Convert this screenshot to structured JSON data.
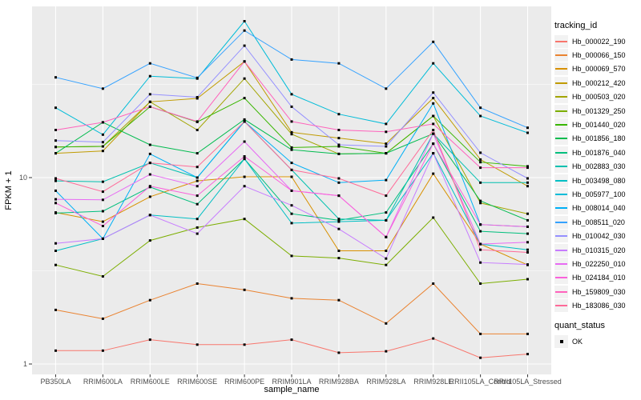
{
  "chart_data": {
    "type": "line",
    "title": "",
    "xlabel": "sample_name",
    "ylabel": "FPKM + 1",
    "y_scale": "log10",
    "ylim": [
      1,
      83
    ],
    "y_ticks": [
      1,
      10
    ],
    "y_tick_labels": [
      "1",
      "10"
    ],
    "y_minor_ticks": [
      3.1623,
      31.623
    ],
    "grid": true,
    "legend_position": "right",
    "categories": [
      "PB350LA",
      "RRIM600LA",
      "RRIM600LE",
      "RRIM600SE",
      "RRIM600PE",
      "RRIM901LA",
      "RRIM928BA",
      "RRIM928LA",
      "RRIM928LE",
      "RRII105LA_Control",
      "RRII105LA_Stressed"
    ],
    "series": [
      {
        "name": "Hb_000022_190",
        "color": "#F8766D",
        "values": [
          1.18,
          1.18,
          1.35,
          1.27,
          1.27,
          1.35,
          1.15,
          1.17,
          1.37,
          1.08,
          1.13
        ]
      },
      {
        "name": "Hb_000066_150",
        "color": "#EA8331",
        "values": [
          1.95,
          1.75,
          2.2,
          2.7,
          2.5,
          2.25,
          2.2,
          1.65,
          2.7,
          1.45,
          1.45
        ]
      },
      {
        "name": "Hb_000069_570",
        "color": "#D89000",
        "values": [
          6.5,
          5.8,
          7.9,
          9.6,
          10.1,
          10.1,
          4.05,
          4.05,
          10.5,
          4.4,
          3.4
        ]
      },
      {
        "name": "Hb_000212_420",
        "color": "#C09B00",
        "values": [
          13.5,
          13.9,
          25.5,
          26.6,
          42,
          17.5,
          16.3,
          15.2,
          26.7,
          12.5,
          9.0
        ]
      },
      {
        "name": "Hb_000503_020",
        "color": "#A3A500",
        "values": [
          14.6,
          14.7,
          25.5,
          18,
          34,
          17.1,
          13.4,
          13.5,
          21.4,
          7.3,
          6.4
        ]
      },
      {
        "name": "Hb_001329_250",
        "color": "#7CAE00",
        "values": [
          3.4,
          2.95,
          4.6,
          5.4,
          6.0,
          3.8,
          3.7,
          3.4,
          6.1,
          2.7,
          2.85
        ]
      },
      {
        "name": "Hb_001440_020",
        "color": "#39B600",
        "values": [
          14.6,
          14.7,
          24,
          19.9,
          26.7,
          14.5,
          14.7,
          13.5,
          21.4,
          12.1,
          11.5
        ]
      },
      {
        "name": "Hb_001856_180",
        "color": "#00BB4E",
        "values": [
          13.5,
          19.8,
          15,
          13.5,
          20.5,
          14.1,
          13.4,
          13.5,
          17.2,
          7.5,
          5.9
        ]
      },
      {
        "name": "Hb_001876_040",
        "color": "#00BF7D",
        "values": [
          6.45,
          6.6,
          8.9,
          7.2,
          12.6,
          6.4,
          5.9,
          6.5,
          15.2,
          5.15,
          5.0
        ]
      },
      {
        "name": "Hb_002883_030",
        "color": "#00C0AF",
        "values": [
          9.6,
          9.5,
          12,
          10,
          20,
          11,
          6.0,
          5.9,
          17.2,
          9.4,
          9.4
        ]
      },
      {
        "name": "Hb_003498_080",
        "color": "#00BFC4",
        "values": [
          4.05,
          4.7,
          6.3,
          6.0,
          12.6,
          5.7,
          5.8,
          5.9,
          13.5,
          4.4,
          4.1
        ]
      },
      {
        "name": "Hb_005977_100",
        "color": "#00BCD8",
        "values": [
          23.7,
          17,
          35,
          34,
          69,
          28,
          21.9,
          19.4,
          41,
          21.4,
          17.4
        ]
      },
      {
        "name": "Hb_008014_040",
        "color": "#00B0F6",
        "values": [
          8.5,
          4.7,
          13.4,
          10,
          20,
          12,
          9.4,
          9.7,
          25,
          5.6,
          5.45
        ]
      },
      {
        "name": "Hb_008511_020",
        "color": "#35A2FF",
        "values": [
          34.5,
          30,
          41,
          34.3,
          61.5,
          43,
          41,
          30,
          53.5,
          23.7,
          18.5
        ]
      },
      {
        "name": "Hb_010042_030",
        "color": "#9590FF",
        "values": [
          15.8,
          15.5,
          28,
          27,
          51,
          24,
          15,
          14.7,
          28.6,
          13.6,
          9.9
        ]
      },
      {
        "name": "Hb_010315_020",
        "color": "#C77CFF",
        "values": [
          4.44,
          4.7,
          6.3,
          5.0,
          9.0,
          7.1,
          5.3,
          3.68,
          13.5,
          3.5,
          3.42
        ]
      },
      {
        "name": "Hb_022250_010",
        "color": "#E76BF3",
        "values": [
          7.65,
          7.6,
          10.4,
          9.0,
          15.6,
          8.5,
          8.0,
          4.8,
          17.2,
          4.4,
          4.5
        ]
      },
      {
        "name": "Hb_024184_010",
        "color": "#FA62DB",
        "values": [
          7.3,
          5.5,
          9.0,
          8.0,
          13,
          8.5,
          8.0,
          4.8,
          15.2,
          5.6,
          5.45
        ]
      },
      {
        "name": "Hb_159809_030",
        "color": "#FF62BC",
        "values": [
          18,
          19.8,
          24,
          20,
          42,
          20,
          18,
          17.6,
          19.4,
          11.3,
          11.3
        ]
      },
      {
        "name": "Hb_183086_030",
        "color": "#FF6A98",
        "values": [
          9.9,
          8.4,
          12,
          11.4,
          20,
          11,
          9.9,
          8.0,
          18,
          4.1,
          3.97
        ]
      }
    ],
    "legend": {
      "tracking_title": "tracking_id",
      "quant_title": "quant_status",
      "quant_items": [
        {
          "label": "OK",
          "marker": "square"
        }
      ]
    },
    "style": {
      "panel_bg": "#EBEBEB",
      "grid_color": "#FFFFFF",
      "point_color": "#000000",
      "axis_text_color": "#4D4D4D",
      "tick_color": "#333333",
      "legend_key_bg": "#F2F2F2"
    }
  }
}
